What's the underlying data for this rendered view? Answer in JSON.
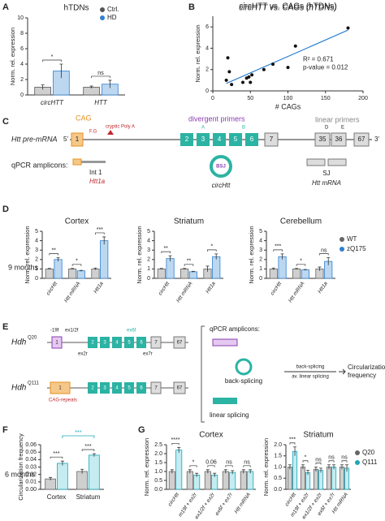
{
  "figure": {
    "panel_labels": [
      "A",
      "B",
      "C",
      "D",
      "E",
      "F",
      "G"
    ],
    "row_labels": [
      "9 months",
      "6 months"
    ]
  },
  "diagrams": {
    "C": {
      "transcript_label": "Htt pre-mRNA",
      "five_prime": "5'",
      "three_prime": "3'",
      "cag": "CAG",
      "fg": "F.G",
      "polya": "cryptic Poly A",
      "exons": [
        "1",
        "2",
        "3",
        "4",
        "5",
        "6",
        "7",
        "35",
        "36",
        "67"
      ],
      "divergent_primers": "divergent primers",
      "linear_primers": "linear primers",
      "markers": [
        "A",
        "B",
        "D",
        "E"
      ],
      "amplicons_label": "qPCR amplicons:",
      "int1": "Int 1",
      "htt1a": "Htt1a",
      "bsj": "BSJ",
      "circ": "circHtt",
      "sj": "SJ",
      "mrna": "Htt mRNA"
    },
    "E": {
      "alleles": [
        {
          "gene": "Hdh",
          "allele": "Q20"
        },
        {
          "gene": "Hdh",
          "allele": "Q111"
        }
      ],
      "exons": [
        "1",
        "2",
        "3",
        "4",
        "5",
        "6",
        "7",
        "67"
      ],
      "primers": [
        "-19f",
        "ex1/2f",
        "ex2r",
        "ex6f",
        "ex7r"
      ],
      "cag_repeats": "CAG-repeats",
      "amplicons_label": "qPCR amplicons:",
      "back_splicing": "back-splicing",
      "linear_splicing": "linear splicing",
      "ratio_top": "back-splicing",
      "ratio_bottom": "av. linear splicing",
      "result": [
        "Circularization",
        "frequency"
      ]
    }
  },
  "chart_data": [
    {
      "type": "bar",
      "title": "hTDNs",
      "categories": [
        "circHTT",
        "HTT"
      ],
      "series": [
        {
          "name": "Ctrl.",
          "color": "#cfcfcf",
          "edge_color": "#555555",
          "values": [
            1.0,
            1.0
          ],
          "errors": [
            0.3,
            0.15
          ]
        },
        {
          "name": "HD",
          "color": "#bcd7f0",
          "edge_color": "#2f80d0",
          "values": [
            3.1,
            1.4
          ],
          "errors": [
            0.9,
            0.5
          ]
        }
      ],
      "ylim": [
        0,
        10
      ],
      "yticks": [
        0,
        2,
        4,
        6,
        8,
        10
      ],
      "ylabel": "Norm. rel. expression",
      "significance": [
        "*",
        "ns"
      ],
      "legend": "upper right"
    },
    {
      "type": "scatter",
      "title": "circHTT vs. CAGs (hTDNs)",
      "x": [
        18,
        20,
        22,
        25,
        40,
        45,
        48,
        50,
        52,
        68,
        80,
        100,
        110,
        180
      ],
      "values": [
        1.0,
        3.1,
        1.8,
        0.6,
        0.8,
        1.2,
        1.3,
        0.8,
        1.5,
        2.0,
        2.5,
        2.2,
        4.2,
        5.9
      ],
      "color": "#111111",
      "xlim": [
        0,
        200
      ],
      "xticks": [
        0,
        50,
        100,
        150,
        200
      ],
      "ylim": [
        0,
        7
      ],
      "yticks": [
        0,
        2,
        4,
        6
      ],
      "xlabel": "# CAGs",
      "ylabel": "Norm. rel. expression",
      "trendline": {
        "x": [
          18,
          180
        ],
        "y": [
          0.7,
          5.7
        ],
        "color": "#2f80d0"
      },
      "annotations": [
        "R² = 0.671",
        "p-value = 0.012"
      ]
    },
    {
      "type": "bar",
      "title": "Cortex",
      "categories": [
        "circHtt",
        "Htt mRNA",
        "Htt1a"
      ],
      "series": [
        {
          "color": "#cfcfcf",
          "edge_color": "#666666",
          "values": [
            1.0,
            1.0,
            1.0
          ],
          "errors": [
            0.05,
            0.05,
            0.1
          ]
        },
        {
          "color": "#bcd7f0",
          "edge_color": "#2f80d0",
          "values": [
            2.0,
            0.8,
            4.0
          ],
          "errors": [
            0.2,
            0.05,
            0.4
          ]
        }
      ],
      "ylim": [
        0,
        5
      ],
      "yticks": [
        0,
        1,
        2,
        3,
        4,
        5
      ],
      "ylabel": "Norm. rel. expression",
      "significance": [
        "**",
        "*",
        "***"
      ]
    },
    {
      "type": "bar",
      "title": "Striatum",
      "categories": [
        "circHtt",
        "Htt mRNA",
        "Htt1a"
      ],
      "series": [
        {
          "color": "#cfcfcf",
          "edge_color": "#666666",
          "values": [
            1.0,
            1.0,
            1.0
          ],
          "errors": [
            0.05,
            0.05,
            0.3
          ]
        },
        {
          "color": "#bcd7f0",
          "edge_color": "#2f80d0",
          "values": [
            2.1,
            0.7,
            2.3
          ],
          "errors": [
            0.3,
            0.05,
            0.3
          ]
        }
      ],
      "ylim": [
        0,
        5
      ],
      "yticks": [
        0,
        1,
        2,
        3,
        4,
        5
      ],
      "ylabel": "Norm. rel. expression",
      "significance": [
        "**",
        "**",
        "*"
      ]
    },
    {
      "type": "bar",
      "title": "Cerebellum",
      "categories": [
        "circHtt",
        "Htt mRNA",
        "Htt1a"
      ],
      "series": [
        {
          "name": "WT",
          "color": "#cfcfcf",
          "edge_color": "#666666",
          "values": [
            1.0,
            1.0,
            1.0
          ],
          "errors": [
            0.1,
            0.05,
            0.2
          ]
        },
        {
          "name": "zQ175",
          "color": "#bcd7f0",
          "edge_color": "#2f80d0",
          "values": [
            2.3,
            0.9,
            1.8
          ],
          "errors": [
            0.3,
            0.05,
            0.4
          ]
        }
      ],
      "ylim": [
        0,
        5
      ],
      "yticks": [
        0,
        1,
        2,
        3,
        4,
        5
      ],
      "ylabel": "Norm. rel. expression",
      "significance": [
        "***",
        "*",
        "ns"
      ],
      "legend": "right"
    },
    {
      "type": "bar",
      "categories": [
        "Cortex",
        "Striatum"
      ],
      "series": [
        {
          "color": "#cfcfcf",
          "edge_color": "#666666",
          "values": [
            0.014,
            0.024
          ],
          "errors": [
            0.002,
            0.003
          ]
        },
        {
          "color": "#c4ecf1",
          "edge_color": "#1aa7b8",
          "values": [
            0.035,
            0.046
          ],
          "errors": [
            0.003,
            0.002
          ]
        }
      ],
      "ylim": [
        0,
        0.06
      ],
      "yticks": [
        {
          "value": 0,
          "label": "0.00"
        },
        {
          "value": 0.01,
          "label": "0.01"
        },
        {
          "value": 0.02,
          "label": "0.02"
        },
        {
          "value": 0.03,
          "label": "0.03"
        },
        {
          "value": 0.04,
          "label": "0.04"
        },
        {
          "value": 0.05,
          "label": "0.05"
        },
        {
          "value": 0.06,
          "label": "0.06"
        }
      ],
      "ylabel": "Circularization frequency",
      "significance": [
        "***",
        "***"
      ],
      "comparison": {
        "label": "***",
        "series": 1
      }
    },
    {
      "type": "bar",
      "title": "Cortex",
      "categories": [
        "circHtt",
        "m19f + ex2r",
        "ex1/2f + ex2r",
        "ex6f + ex7r",
        "Htt mRNA"
      ],
      "series": [
        {
          "color": "#cfcfcf",
          "edge_color": "#666666",
          "values": [
            1.0,
            1.0,
            1.0,
            1.0,
            1.0
          ],
          "errors": [
            0.1,
            0.1,
            0.1,
            0.1,
            0.1
          ]
        },
        {
          "color": "#c4ecf1",
          "edge_color": "#1aa7b8",
          "values": [
            2.2,
            0.8,
            0.8,
            0.95,
            1.0
          ],
          "errors": [
            0.15,
            0.1,
            0.1,
            0.1,
            0.1
          ]
        }
      ],
      "ylim": [
        0,
        2.5
      ],
      "yticks": [
        {
          "value": 0,
          "label": "0.0"
        },
        0.5,
        {
          "value": 1,
          "label": "1.0"
        },
        1.5,
        {
          "value": 2,
          "label": "2.0"
        },
        2.5
      ],
      "ylabel": "Norm. rel. expression",
      "significance": [
        "****",
        "*",
        "0.06",
        "ns",
        "ns"
      ]
    },
    {
      "type": "bar",
      "title": "Striatum",
      "categories": [
        "circHtt",
        "m19f + ex2r",
        "ex1/2f + ex2r",
        "ex6f + ex7r",
        "Htt mRNA"
      ],
      "series": [
        {
          "name": "Q20",
          "color": "#cfcfcf",
          "edge_color": "#666666",
          "values": [
            1.0,
            1.0,
            0.9,
            1.0,
            1.0
          ],
          "errors": [
            0.1,
            0.1,
            0.1,
            0.1,
            0.1
          ]
        },
        {
          "name": "Q111",
          "color": "#c4ecf1",
          "edge_color": "#1aa7b8",
          "values": [
            1.7,
            0.75,
            0.85,
            1.0,
            0.95
          ],
          "errors": [
            0.2,
            0.1,
            0.1,
            0.1,
            0.15
          ]
        }
      ],
      "ylim": [
        0,
        2
      ],
      "yticks": [
        {
          "value": 0,
          "label": "0.0"
        },
        0.5,
        {
          "value": 1,
          "label": "1.0"
        },
        1.5,
        {
          "value": 2,
          "label": "2.0"
        }
      ],
      "ylabel": "Norm. rel. expression",
      "significance": [
        "***",
        "*",
        "ns",
        "ns",
        "ns"
      ],
      "legend": "right"
    }
  ]
}
